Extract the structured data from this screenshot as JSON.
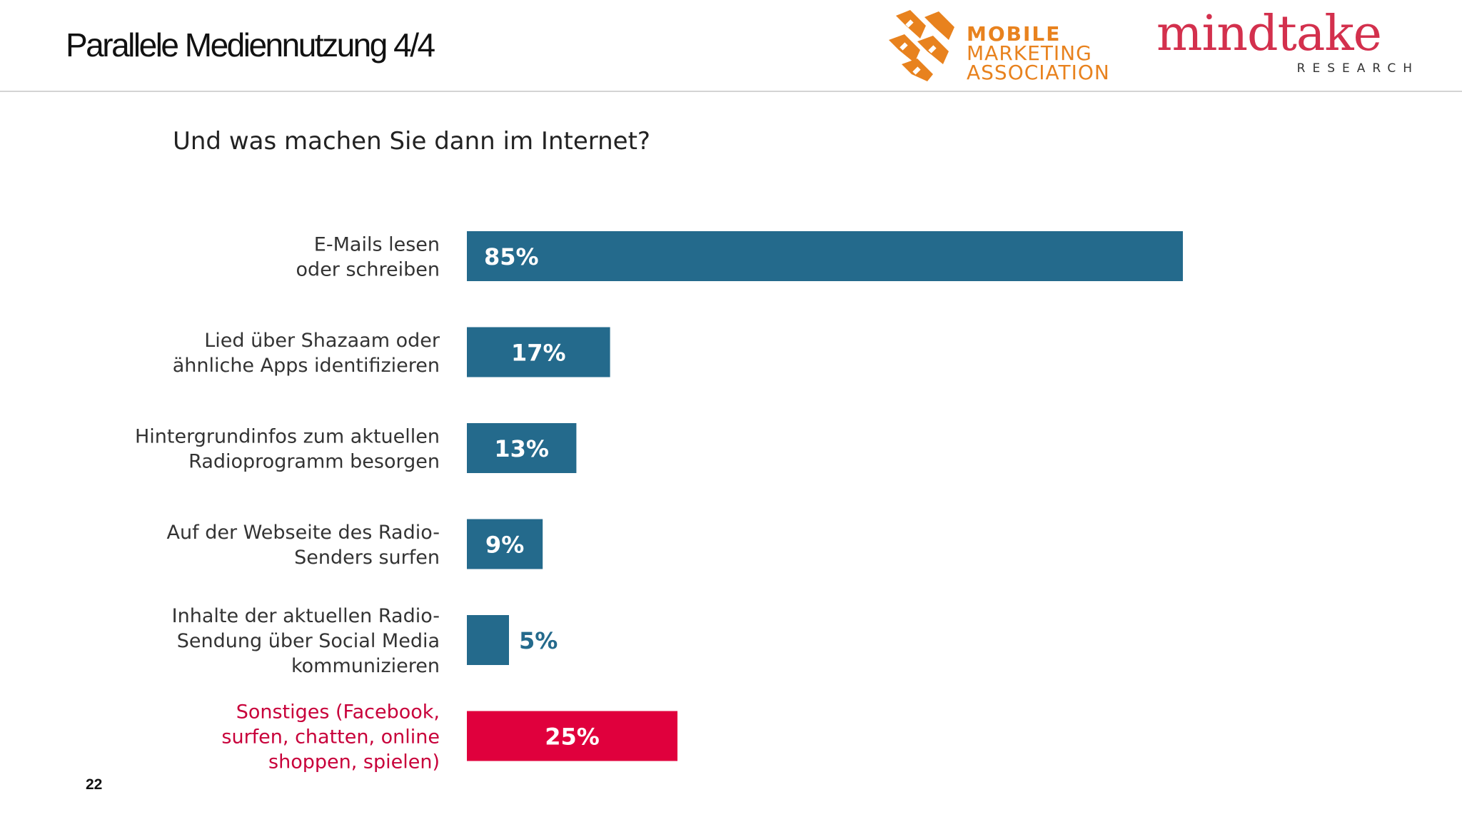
{
  "page": {
    "title": "Parallele Mediennutzung 4/4",
    "question": "Und was machen Sie dann im Internet?",
    "page_number": "22"
  },
  "logos": {
    "mma": {
      "line1": "MOBILE",
      "line2": "MARKETING",
      "line3": "ASSOCIATION",
      "color": "#e8821e"
    },
    "mindtake": {
      "word": "mindtake",
      "sub": "RESEARCH",
      "color": "#d3304d"
    }
  },
  "colors": {
    "bar": "#246a8c",
    "highlight": "#e0003d",
    "label": "#333333",
    "highlight_label": "#c8003a"
  },
  "chart_data": {
    "type": "bar",
    "orientation": "horizontal",
    "title": "Und was machen Sie dann im Internet?",
    "xlabel": "",
    "ylabel": "",
    "xlim": [
      0,
      100
    ],
    "unit": "%",
    "grid": false,
    "categories": [
      [
        "E-Mails lesen",
        "oder schreiben"
      ],
      [
        "Lied über Shazaam oder",
        "ähnliche Apps identifizieren"
      ],
      [
        "Hintergrundinfos zum aktuellen",
        "Radioprogramm besorgen"
      ],
      [
        "Auf der Webseite des Radio-",
        "Senders surfen"
      ],
      [
        "Inhalte der aktuellen Radio-",
        "Sendung über Social Media",
        "kommunizieren"
      ],
      [
        "Sonstiges (Facebook,",
        "surfen, chatten, online",
        "shoppen, spielen)"
      ]
    ],
    "values": [
      85,
      17,
      13,
      9,
      5,
      25
    ],
    "value_labels": [
      "85%",
      "17%",
      "13%",
      "9%",
      "5%",
      "25%"
    ],
    "highlight": [
      false,
      false,
      false,
      false,
      false,
      true
    ]
  }
}
